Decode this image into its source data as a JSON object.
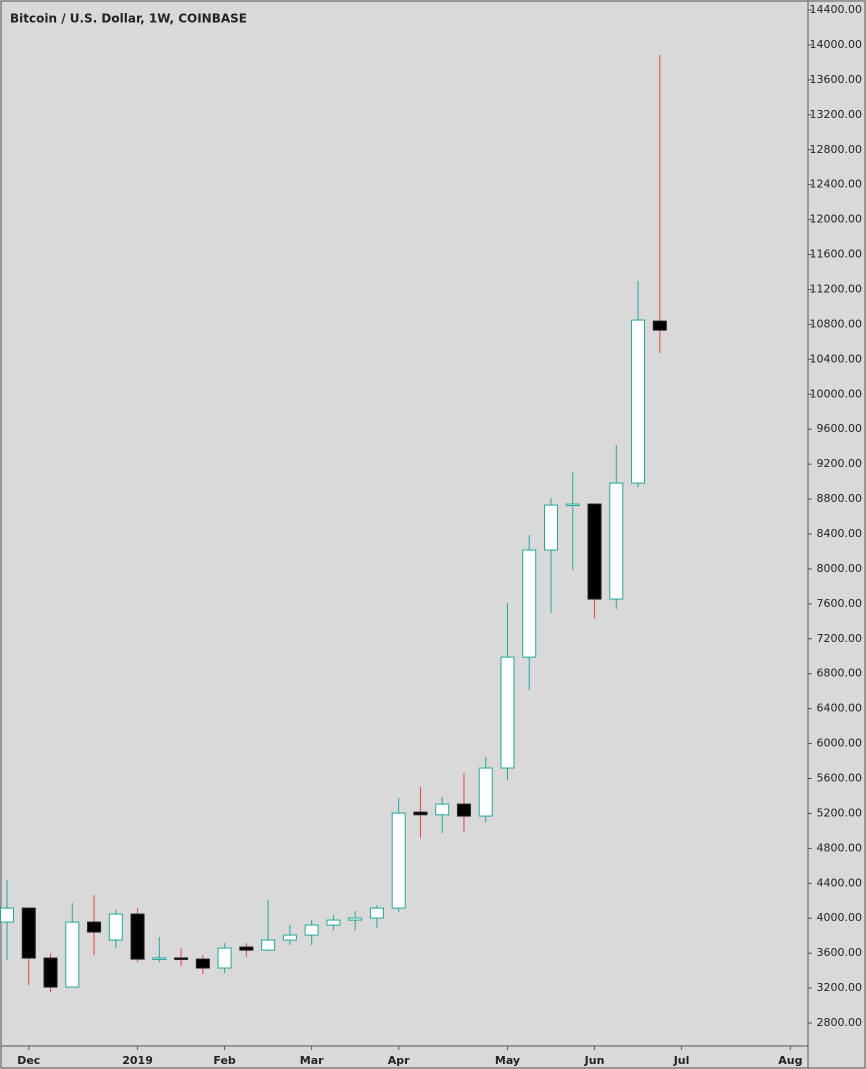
{
  "chart_data": {
    "type": "candlestick",
    "title": "Bitcoin / U.S. Dollar, 1W, COINBASE",
    "x": [
      0,
      1,
      2,
      3,
      4,
      5,
      6,
      7,
      8,
      9,
      10,
      11,
      12,
      13,
      14,
      15,
      16,
      17,
      18,
      19,
      20,
      21,
      22,
      23,
      24,
      25,
      26,
      27,
      28,
      29,
      30
    ],
    "open": [
      3956,
      4116,
      3544,
      3212,
      3956,
      3750,
      4048,
      3532,
      3545,
      3532,
      3430,
      3670,
      3635,
      3750,
      3807,
      3922,
      3979,
      4002,
      4116,
      5215,
      5185,
      5307,
      5170,
      5720,
      6990,
      8216,
      8731,
      8743,
      7655,
      8983,
      10838
    ],
    "high": [
      4437,
      4116,
      3601,
      4174,
      4265,
      4094,
      4116,
      3784,
      3658,
      3578,
      3715,
      3715,
      4208,
      3922,
      3979,
      4036,
      4082,
      4151,
      5376,
      5502,
      5387,
      5662,
      5845,
      7609,
      8388,
      8812,
      9109,
      8743,
      9418,
      11297,
      13885
    ],
    "low": [
      3521,
      3234,
      3154,
      3212,
      3578,
      3658,
      3498,
      3498,
      3452,
      3360,
      3372,
      3555,
      3624,
      3693,
      3693,
      3864,
      3864,
      3887,
      4071,
      4918,
      4975,
      4987,
      5100,
      5582,
      6613,
      7495,
      7987,
      7437,
      7540,
      8937,
      10472
    ],
    "close": [
      4116,
      3544,
      3212,
      3956,
      3842,
      4048,
      3532,
      3545,
      3532,
      3430,
      3658,
      3635,
      3750,
      3807,
      3922,
      3979,
      4002,
      4116,
      5204,
      5185,
      5307,
      5170,
      5720,
      6990,
      8216,
      8731,
      8743,
      7655,
      8983,
      10850,
      10735
    ],
    "up_color": "#ffffff",
    "up_border": "#26a69a",
    "down_color": "#000000",
    "down_border": "#e5433f",
    "xlim": [
      -0.23,
      36.81
    ],
    "xticks": [
      {
        "value": 1,
        "label": "Dec"
      },
      {
        "value": 6,
        "label": "2019"
      },
      {
        "value": 10,
        "label": "Feb"
      },
      {
        "value": 14,
        "label": "Mar"
      },
      {
        "value": 18,
        "label": "Apr"
      },
      {
        "value": 23,
        "label": "May"
      },
      {
        "value": 27,
        "label": "Jun"
      },
      {
        "value": 31,
        "label": "Jul"
      },
      {
        "value": 36,
        "label": "Aug"
      }
    ],
    "ylim": [
      2537,
      14492
    ],
    "yticks": [
      {
        "value": 2800,
        "label": "2800.00"
      },
      {
        "value": 3200,
        "label": "3200.00"
      },
      {
        "value": 3600,
        "label": "3600.00"
      },
      {
        "value": 4000,
        "label": "4000.00"
      },
      {
        "value": 4400,
        "label": "4400.00"
      },
      {
        "value": 4800,
        "label": "4800.00"
      },
      {
        "value": 5200,
        "label": "5200.00"
      },
      {
        "value": 5600,
        "label": "5600.00"
      },
      {
        "value": 6000,
        "label": "6000.00"
      },
      {
        "value": 6400,
        "label": "6400.00"
      },
      {
        "value": 6800,
        "label": "6800.00"
      },
      {
        "value": 7200,
        "label": "7200.00"
      },
      {
        "value": 7600,
        "label": "7600.00"
      },
      {
        "value": 8000,
        "label": "8000.00"
      },
      {
        "value": 8400,
        "label": "8400.00"
      },
      {
        "value": 8800,
        "label": "8800.00"
      },
      {
        "value": 9200,
        "label": "9200.00"
      },
      {
        "value": 9600,
        "label": "9600.00"
      },
      {
        "value": 10000,
        "label": "10000.00"
      },
      {
        "value": 10400,
        "label": "10400.00"
      },
      {
        "value": 10800,
        "label": "10800.00"
      },
      {
        "value": 11200,
        "label": "11200.00"
      },
      {
        "value": 11600,
        "label": "11600.00"
      },
      {
        "value": 12000,
        "label": "12000.00"
      },
      {
        "value": 12400,
        "label": "12400.00"
      },
      {
        "value": 12800,
        "label": "12800.00"
      },
      {
        "value": 13200,
        "label": "13200.00"
      },
      {
        "value": 13600,
        "label": "13600.00"
      },
      {
        "value": 14000,
        "label": "14000.00"
      },
      {
        "value": 14400,
        "label": "14400.00"
      }
    ],
    "grid": false
  }
}
